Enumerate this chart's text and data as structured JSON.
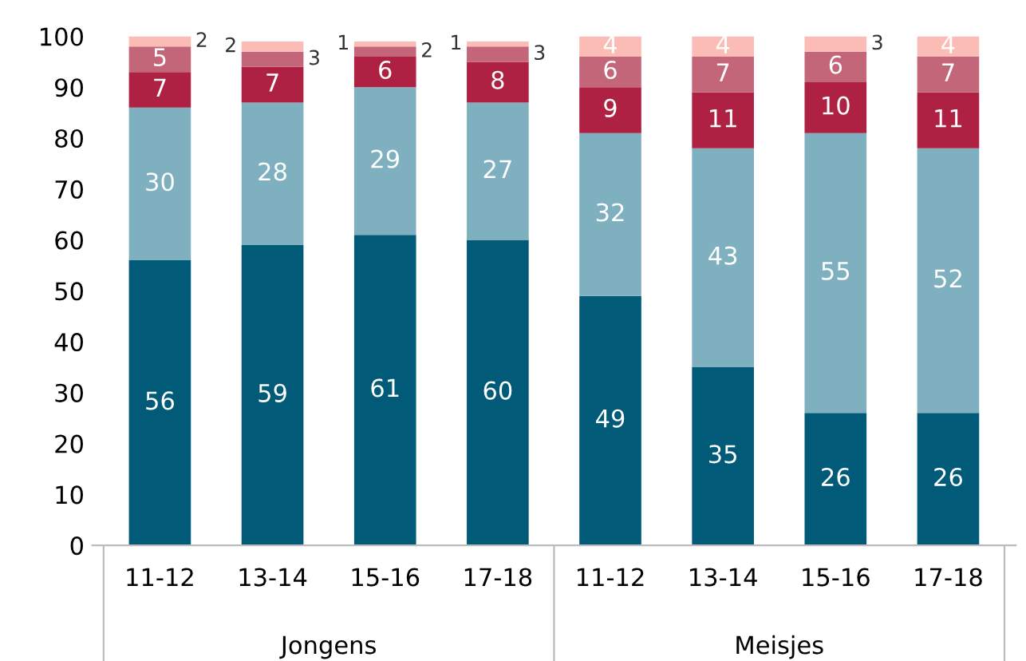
{
  "chart_data": {
    "type": "bar",
    "stacked": true,
    "categories": [
      "11-12",
      "13-14",
      "15-16",
      "17-18",
      "11-12",
      "13-14",
      "15-16",
      "17-18"
    ],
    "series": [
      {
        "color": "#005a78",
        "values": [
          56,
          59,
          61,
          60,
          49,
          35,
          26,
          26
        ]
      },
      {
        "color": "#7fb0c0",
        "values": [
          30,
          28,
          29,
          27,
          32,
          43,
          55,
          52
        ]
      },
      {
        "color": "#ae2142",
        "values": [
          7,
          7,
          6,
          8,
          9,
          11,
          10,
          11
        ]
      },
      {
        "color": "#c4667a",
        "values": [
          5,
          3,
          2,
          3,
          6,
          7,
          6,
          7
        ]
      },
      {
        "color": "#fbbcb5",
        "values": [
          2,
          2,
          1,
          1,
          4,
          4,
          3,
          4
        ]
      }
    ],
    "ylim": [
      0,
      100
    ],
    "yticks": [
      0,
      10,
      20,
      30,
      40,
      50,
      60,
      70,
      80,
      90,
      100
    ],
    "data_labels": true,
    "grid": false,
    "legend": false,
    "annotations": [
      "Jongens",
      "Meisjes"
    ]
  }
}
